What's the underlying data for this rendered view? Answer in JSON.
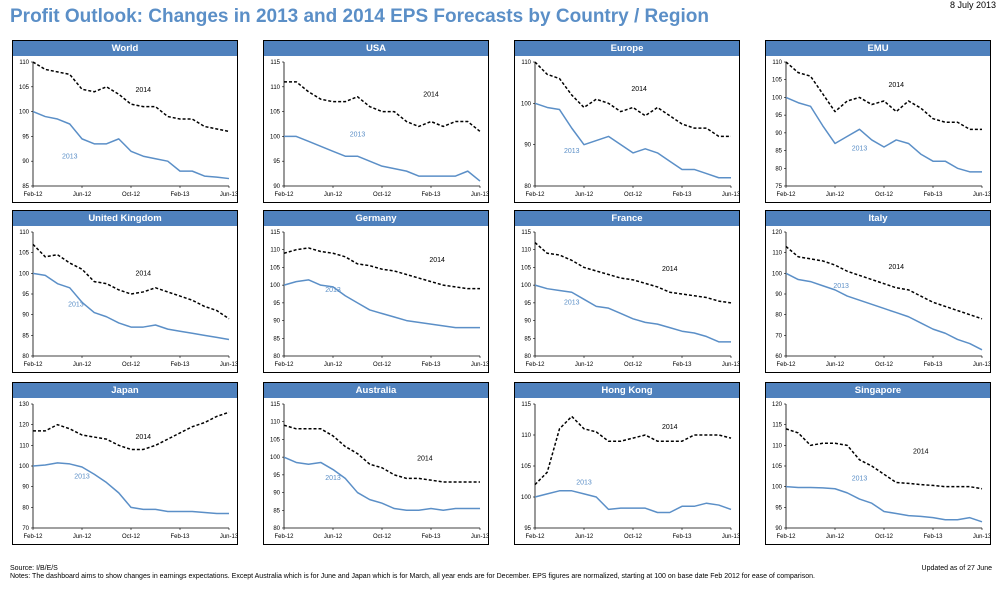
{
  "date": "8 July 2013",
  "title": "Profit Outlook: Changes in 2013 and 2014 EPS Forecasts by Country / Region",
  "source": "Source: I/B/E/S",
  "notes": "Notes: The dashboard aims to show changes in earnings expectations. Except Australia which is for June and Japan which is for March, all year ends are for December. EPS figures are normalized, starting at 100 on base date Feb 2012 for ease of comparison.",
  "updated": "Updated as of 27 June",
  "colors": {
    "header": "#4f81bd",
    "line2013": "#5b8fc7",
    "line2014": "#000000",
    "title": "#5b8fc7"
  },
  "chart_data": [
    {
      "type": "line",
      "title": "World",
      "categories": [
        "Feb-12",
        "Jun-12",
        "Oct-12",
        "Feb-13",
        "Jun-13"
      ],
      "x": [
        0,
        1,
        2,
        3,
        4,
        5,
        6,
        7,
        8,
        9,
        10,
        11,
        12,
        13,
        14,
        15,
        16
      ],
      "ylim": [
        85,
        110
      ],
      "yticks": [
        85,
        90,
        95,
        100,
        105,
        110
      ],
      "series": [
        {
          "name": "2014",
          "values": [
            110,
            108.5,
            108,
            107.5,
            104.5,
            104,
            105,
            103.5,
            101.5,
            101,
            101,
            99,
            98.5,
            98.5,
            97,
            96.5,
            96
          ]
        },
        {
          "name": "2013",
          "values": [
            100,
            99,
            98.5,
            97.5,
            94.5,
            93.5,
            93.5,
            94.5,
            92,
            91,
            90.5,
            90,
            88,
            88,
            87,
            86.8,
            86.5
          ]
        }
      ],
      "label2014": {
        "x": 9,
        "y": 104
      },
      "label2013": {
        "x": 3,
        "y": 90.5
      }
    },
    {
      "type": "line",
      "title": "USA",
      "categories": [
        "Feb-12",
        "Jun-12",
        "Oct-12",
        "Feb-13",
        "Jun-13"
      ],
      "x": [
        0,
        1,
        2,
        3,
        4,
        5,
        6,
        7,
        8,
        9,
        10,
        11,
        12,
        13,
        14,
        15,
        16
      ],
      "ylim": [
        90,
        115
      ],
      "yticks": [
        90,
        95,
        100,
        105,
        110,
        115
      ],
      "series": [
        {
          "name": "2014",
          "values": [
            111,
            111,
            109,
            107.5,
            107,
            107,
            108,
            106,
            105,
            105,
            103,
            102,
            103,
            102,
            103,
            103,
            101
          ]
        },
        {
          "name": "2013",
          "values": [
            100,
            100,
            99,
            98,
            97,
            96,
            96,
            95,
            94,
            93.5,
            93,
            92,
            92,
            92,
            92,
            93,
            91
          ]
        }
      ],
      "label2014": {
        "x": 12,
        "y": 108
      },
      "label2013": {
        "x": 6,
        "y": 100
      }
    },
    {
      "type": "line",
      "title": "Europe",
      "categories": [
        "Feb-12",
        "Jun-12",
        "Oct-12",
        "Feb-13",
        "Jun-13"
      ],
      "x": [
        0,
        1,
        2,
        3,
        4,
        5,
        6,
        7,
        8,
        9,
        10,
        11,
        12,
        13,
        14,
        15,
        16
      ],
      "ylim": [
        80,
        110
      ],
      "yticks": [
        80,
        90,
        100,
        110
      ],
      "series": [
        {
          "name": "2014",
          "values": [
            110,
            107,
            106,
            102,
            99,
            101,
            100,
            98,
            99,
            97,
            99,
            97,
            95,
            94,
            94,
            92,
            92
          ]
        },
        {
          "name": "2013",
          "values": [
            100,
            99,
            98.5,
            94,
            90,
            91,
            92,
            90,
            88,
            89,
            88,
            86,
            84,
            84,
            83,
            82,
            82
          ]
        }
      ],
      "label2014": {
        "x": 8.5,
        "y": 103
      },
      "label2013": {
        "x": 3,
        "y": 88
      }
    },
    {
      "type": "line",
      "title": "EMU",
      "categories": [
        "Feb-12",
        "Jun-12",
        "Oct-12",
        "Feb-13",
        "Jun-13"
      ],
      "x": [
        0,
        1,
        2,
        3,
        4,
        5,
        6,
        7,
        8,
        9,
        10,
        11,
        12,
        13,
        14,
        15,
        16
      ],
      "ylim": [
        75,
        110
      ],
      "yticks": [
        75,
        80,
        85,
        90,
        95,
        100,
        105,
        110
      ],
      "series": [
        {
          "name": "2014",
          "values": [
            110,
            107,
            106,
            101,
            96,
            99,
            100,
            98,
            99,
            96,
            99,
            97,
            94,
            93,
            93,
            91,
            91
          ]
        },
        {
          "name": "2013",
          "values": [
            100,
            98.5,
            97.5,
            92,
            87,
            89,
            91,
            88,
            86,
            88,
            87,
            84,
            82,
            82,
            80,
            79,
            79
          ]
        }
      ],
      "label2014": {
        "x": 9,
        "y": 103
      },
      "label2013": {
        "x": 6,
        "y": 85
      }
    },
    {
      "type": "line",
      "title": "United Kingdom",
      "categories": [
        "Feb-12",
        "Jun-12",
        "Oct-12",
        "Feb-13",
        "Jun-13"
      ],
      "x": [
        0,
        1,
        2,
        3,
        4,
        5,
        6,
        7,
        8,
        9,
        10,
        11,
        12,
        13,
        14,
        15,
        16
      ],
      "ylim": [
        80,
        110
      ],
      "yticks": [
        80,
        85,
        90,
        95,
        100,
        105,
        110
      ],
      "series": [
        {
          "name": "2014",
          "values": [
            107,
            104,
            104.5,
            102.5,
            101,
            98,
            97.5,
            96,
            95,
            95.5,
            96.5,
            95.5,
            94.5,
            93.5,
            92,
            91,
            89
          ]
        },
        {
          "name": "2013",
          "values": [
            100,
            99.5,
            97.5,
            96.5,
            93,
            90.5,
            89.5,
            88,
            87,
            87,
            87.5,
            86.5,
            86,
            85.5,
            85,
            84.5,
            84
          ]
        }
      ],
      "label2014": {
        "x": 9,
        "y": 99.5
      },
      "label2013": {
        "x": 3.5,
        "y": 92
      }
    },
    {
      "type": "line",
      "title": "Germany",
      "categories": [
        "Feb-12",
        "Jun-12",
        "Oct-12",
        "Feb-13",
        "Jun-13"
      ],
      "x": [
        0,
        1,
        2,
        3,
        4,
        5,
        6,
        7,
        8,
        9,
        10,
        11,
        12,
        13,
        14,
        15,
        16
      ],
      "ylim": [
        80,
        115
      ],
      "yticks": [
        80,
        85,
        90,
        95,
        100,
        105,
        110,
        115
      ],
      "series": [
        {
          "name": "2014",
          "values": [
            109,
            110,
            110.5,
            109.5,
            109,
            108,
            106,
            105.5,
            104.5,
            104,
            103,
            102,
            101,
            100,
            99.5,
            99,
            99
          ]
        },
        {
          "name": "2013",
          "values": [
            100,
            101,
            101.5,
            100,
            99.5,
            97,
            95,
            93,
            92,
            91,
            90,
            89.5,
            89,
            88.5,
            88,
            88,
            88
          ]
        }
      ],
      "label2014": {
        "x": 12.5,
        "y": 106.5
      },
      "label2013": {
        "x": 4,
        "y": 98
      }
    },
    {
      "type": "line",
      "title": "France",
      "categories": [
        "Feb-12",
        "Jun-12",
        "Oct-12",
        "Feb-13",
        "Jun-13"
      ],
      "x": [
        0,
        1,
        2,
        3,
        4,
        5,
        6,
        7,
        8,
        9,
        10,
        11,
        12,
        13,
        14,
        15,
        16
      ],
      "ylim": [
        80,
        115
      ],
      "yticks": [
        80,
        85,
        90,
        95,
        100,
        105,
        110,
        115
      ],
      "series": [
        {
          "name": "2014",
          "values": [
            112,
            109,
            108.5,
            107,
            105,
            104,
            103,
            102,
            101.5,
            100.5,
            99.5,
            98,
            97.5,
            97,
            96.5,
            95.5,
            95
          ]
        },
        {
          "name": "2013",
          "values": [
            100,
            99,
            98.5,
            98,
            96,
            94,
            93.5,
            92,
            90.5,
            89.5,
            89,
            88,
            87,
            86.5,
            85.5,
            84,
            84
          ]
        }
      ],
      "label2014": {
        "x": 11,
        "y": 104
      },
      "label2013": {
        "x": 3,
        "y": 94.5
      }
    },
    {
      "type": "line",
      "title": "Italy",
      "categories": [
        "Feb-12",
        "Jun-12",
        "Oct-12",
        "Feb-13",
        "Jun-13"
      ],
      "x": [
        0,
        1,
        2,
        3,
        4,
        5,
        6,
        7,
        8,
        9,
        10,
        11,
        12,
        13,
        14,
        15,
        16
      ],
      "ylim": [
        60,
        120
      ],
      "yticks": [
        60,
        70,
        80,
        90,
        100,
        110,
        120
      ],
      "series": [
        {
          "name": "2014",
          "values": [
            113,
            108,
            107,
            106,
            104,
            101,
            99,
            97,
            95,
            93,
            92,
            89,
            86,
            84,
            82,
            80,
            78
          ]
        },
        {
          "name": "2013",
          "values": [
            100,
            97,
            96,
            94,
            92,
            89,
            87,
            85,
            83,
            81,
            79,
            76,
            73,
            71,
            68,
            66,
            63
          ]
        }
      ],
      "label2014": {
        "x": 9,
        "y": 102
      },
      "label2013": {
        "x": 4.5,
        "y": 93
      }
    },
    {
      "type": "line",
      "title": "Japan",
      "categories": [
        "Feb-12",
        "Jun-12",
        "Oct-12",
        "Feb-13",
        "Jun-13"
      ],
      "x": [
        0,
        1,
        2,
        3,
        4,
        5,
        6,
        7,
        8,
        9,
        10,
        11,
        12,
        13,
        14,
        15,
        16
      ],
      "ylim": [
        70,
        130
      ],
      "yticks": [
        70,
        80,
        90,
        100,
        110,
        120,
        130
      ],
      "series": [
        {
          "name": "2014",
          "values": [
            117,
            117,
            120,
            118,
            115,
            114,
            113,
            110,
            108,
            108,
            110,
            113,
            116,
            119,
            121,
            124,
            126
          ]
        },
        {
          "name": "2013",
          "values": [
            100,
            100.5,
            101.5,
            101,
            99.5,
            96,
            92,
            87,
            80,
            79,
            79,
            78,
            78,
            78,
            77.5,
            77,
            77
          ]
        }
      ],
      "label2014": {
        "x": 9,
        "y": 113
      },
      "label2013": {
        "x": 4,
        "y": 94
      }
    },
    {
      "type": "line",
      "title": "Australia",
      "categories": [
        "Feb-12",
        "Jun-12",
        "Oct-12",
        "Feb-13",
        "Jun-13"
      ],
      "x": [
        0,
        1,
        2,
        3,
        4,
        5,
        6,
        7,
        8,
        9,
        10,
        11,
        12,
        13,
        14,
        15,
        16
      ],
      "ylim": [
        80,
        115
      ],
      "yticks": [
        80,
        85,
        90,
        95,
        100,
        105,
        110,
        115
      ],
      "series": [
        {
          "name": "2014",
          "values": [
            109,
            108,
            108,
            108,
            106,
            103,
            101,
            98,
            97,
            95,
            94,
            94,
            93.5,
            93,
            93,
            93,
            93
          ]
        },
        {
          "name": "2013",
          "values": [
            100,
            98.5,
            98,
            98.5,
            96.5,
            94,
            90,
            88,
            87,
            85.5,
            85,
            85,
            85.5,
            85,
            85.5,
            85.5,
            85.5
          ]
        }
      ],
      "label2014": {
        "x": 11.5,
        "y": 99
      },
      "label2013": {
        "x": 4,
        "y": 93.5
      }
    },
    {
      "type": "line",
      "title": "Hong Kong",
      "categories": [
        "Feb-12",
        "Jun-12",
        "Oct-12",
        "Feb-13",
        "Jun-13"
      ],
      "x": [
        0,
        1,
        2,
        3,
        4,
        5,
        6,
        7,
        8,
        9,
        10,
        11,
        12,
        13,
        14,
        15,
        16
      ],
      "ylim": [
        95,
        115
      ],
      "yticks": [
        95,
        100,
        105,
        110,
        115
      ],
      "series": [
        {
          "name": "2014",
          "values": [
            102,
            104,
            111,
            113,
            111,
            110.5,
            109,
            109,
            109.5,
            110,
            109,
            109,
            109,
            110,
            110,
            110,
            109.5
          ]
        },
        {
          "name": "2013",
          "values": [
            100,
            100.5,
            101,
            101,
            100.5,
            100,
            98,
            98.2,
            98.2,
            98.2,
            97.5,
            97.5,
            98.5,
            98.5,
            99,
            98.7,
            98
          ]
        }
      ],
      "label2014": {
        "x": 11,
        "y": 111
      },
      "label2013": {
        "x": 4,
        "y": 102
      }
    },
    {
      "type": "line",
      "title": "Singapore",
      "categories": [
        "Feb-12",
        "Jun-12",
        "Oct-12",
        "Feb-13",
        "Jun-13"
      ],
      "x": [
        0,
        1,
        2,
        3,
        4,
        5,
        6,
        7,
        8,
        9,
        10,
        11,
        12,
        13,
        14,
        15,
        16
      ],
      "ylim": [
        90,
        120
      ],
      "yticks": [
        90,
        95,
        100,
        105,
        110,
        115,
        120
      ],
      "series": [
        {
          "name": "2014",
          "values": [
            114,
            113,
            110,
            110.5,
            110.5,
            110,
            106.5,
            105,
            103,
            101,
            100.8,
            100.5,
            100.3,
            100,
            100,
            100,
            99.5
          ]
        },
        {
          "name": "2013",
          "values": [
            100,
            99.8,
            99.8,
            99.7,
            99.5,
            98.5,
            97,
            96,
            94,
            93.5,
            93,
            92.8,
            92.5,
            92,
            92,
            92.5,
            91.5
          ]
        }
      ],
      "label2014": {
        "x": 11,
        "y": 108
      },
      "label2013": {
        "x": 6,
        "y": 101.5
      }
    }
  ]
}
